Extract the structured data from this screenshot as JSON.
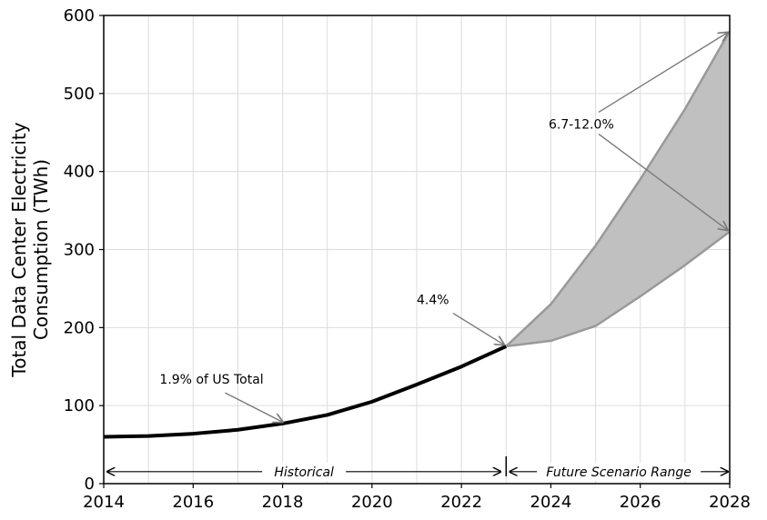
{
  "chart_data": {
    "type": "line",
    "title": "",
    "xlabel": "",
    "ylabel": "Total Data Center Electricity\nConsumption (TWh)",
    "xlim": [
      2014,
      2028
    ],
    "ylim": [
      0,
      600
    ],
    "xticks": [
      2014,
      2016,
      2018,
      2020,
      2022,
      2024,
      2026,
      2028
    ],
    "yticks": [
      0,
      100,
      200,
      300,
      400,
      500,
      600
    ],
    "grid": true,
    "series": [
      {
        "kind": "historical",
        "x": [
          2014,
          2015,
          2016,
          2017,
          2018,
          2019,
          2020,
          2021,
          2022,
          2023
        ],
        "y": [
          60,
          61,
          64,
          69,
          77,
          88,
          105,
          127,
          150,
          176
        ],
        "color": "#000000"
      },
      {
        "kind": "future-upper",
        "x": [
          2023,
          2024,
          2025,
          2026,
          2027,
          2028
        ],
        "y": [
          176,
          230,
          305,
          390,
          480,
          580
        ],
        "color": "#999999"
      },
      {
        "kind": "future-lower",
        "x": [
          2023,
          2024,
          2025,
          2026,
          2027,
          2028
        ],
        "y": [
          176,
          183,
          202,
          240,
          280,
          323
        ],
        "color": "#999999"
      }
    ],
    "band_color": "#c0c0c0",
    "divider_x": 2023,
    "annotations": [
      {
        "text": "1.9% of US Total",
        "text_x": 2015.25,
        "text_y": 128,
        "target_x": 2018,
        "target_y": 79
      },
      {
        "text": "4.4%",
        "text_x": 2021.0,
        "text_y": 230,
        "target_x": 2022.95,
        "target_y": 178
      },
      {
        "text": "6.7-12.0%",
        "text_x": 2023.95,
        "text_y": 455,
        "targets": [
          [
            2027.95,
            578
          ],
          [
            2027.95,
            325
          ]
        ]
      }
    ],
    "spans": [
      {
        "label": "Historical",
        "from": 2014,
        "to": 2023,
        "y": 20
      },
      {
        "label": "Future Scenario Range",
        "from": 2023,
        "to": 2028,
        "y": 20
      }
    ]
  }
}
